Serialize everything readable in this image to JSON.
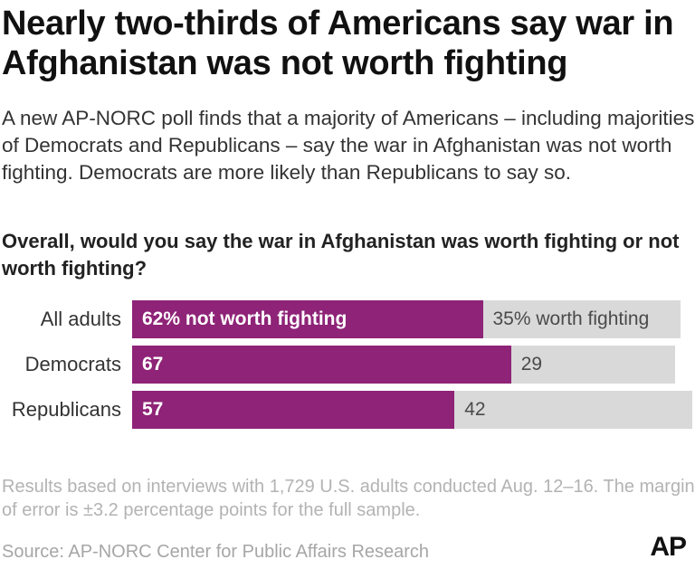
{
  "headline": "Nearly two-thirds of Americans say war in Afghanistan was not worth fighting",
  "subhead": "A new AP-NORC poll finds that a majority of Americans – including majorities of Democrats and Republicans – say the war in Afghanistan was not worth fighting. Democrats are more likely than Republicans to say so.",
  "question": "Overall, would you say the war in Afghanistan was worth fighting or not worth fighting?",
  "footnote": "Results based on interviews with 1,729 U.S. adults conducted Aug. 12–16. The margin of error is ±3.2 percentage points for the full sample.",
  "source": "Source: AP-NORC Center for Public Affairs Research",
  "logo_text": "AP",
  "colors": {
    "not_worth": "#8e2377",
    "worth": "#d9d9d9"
  },
  "chart_data": {
    "type": "bar",
    "orientation": "horizontal",
    "stacked": true,
    "categories": [
      "All adults",
      "Democrats",
      "Republicans"
    ],
    "series": [
      {
        "key": "not_worth",
        "values": [
          62,
          67,
          57
        ],
        "labels": [
          "62% not worth fighting",
          "67",
          "57"
        ]
      },
      {
        "key": "worth",
        "values": [
          35,
          29,
          42
        ],
        "labels": [
          "35% worth fighting",
          "29",
          "42"
        ]
      }
    ],
    "xlim": [
      0,
      100
    ],
    "grid": false,
    "legend": "none"
  }
}
